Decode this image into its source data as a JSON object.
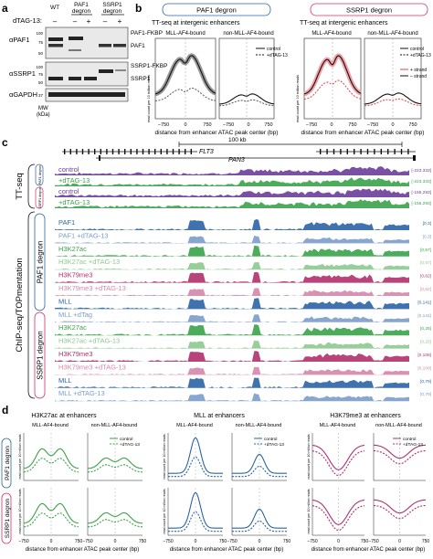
{
  "panel_labels": {
    "a": "a",
    "b": "b",
    "c": "c",
    "d": "d"
  },
  "panel_a": {
    "dtag_label": "dTAG-13:",
    "lane_headers": [
      "WT",
      "PAF1 degron",
      "SSRP1 degron"
    ],
    "treatment_signs": [
      "–",
      "–",
      "+",
      "–",
      "+"
    ],
    "antibodies": [
      "αPAF1",
      "αSSRP1",
      "αGAPDH"
    ],
    "band_labels": [
      "PAF1-FKBP",
      "PAF1",
      "SSRP1-FKBP",
      "SSRP1"
    ],
    "mw_label": "MW (kDa)",
    "mw_markers": [
      "100",
      "75",
      "50",
      "100",
      "75",
      "50",
      "37"
    ]
  },
  "panel_b": {
    "plots": [
      {
        "title": "PAF1 degron",
        "subtitle": "TT-seq at intergenic enhancers",
        "group_left": "MLL-AF4-bound",
        "group_right": "non-MLL-AF4-bound",
        "ylabel": "read count per 10 million reads",
        "xlabel": "distance from enhancer ATAC peak center (bp)",
        "xticks": [
          "−750",
          "0",
          "750",
          "−750",
          "0",
          "750"
        ],
        "legend": [
          "control",
          "+dTAG-13"
        ]
      },
      {
        "title": "SSRP1 degron",
        "subtitle": "TT-seq at intergenic enhancers",
        "group_left": "MLL-AF4-bound",
        "group_right": "non-MLL-AF4-bound",
        "ylabel": "read count per 10 million reads",
        "xlabel": "distance from enhancer ATAC peak center (bp)",
        "xticks": [
          "−750",
          "0",
          "750",
          "−750",
          "0",
          "750"
        ],
        "legend": [
          "+ strand",
          "– strand"
        ]
      }
    ]
  },
  "panel_c": {
    "scale": "100 kb",
    "genes": [
      "FLT3",
      "PAN3"
    ],
    "ttseq_label": "TT-seq",
    "chip_label": "ChIP-seq/TOPmentation",
    "groups": [
      "PAF1 degron",
      "SSRP1 degron",
      "PAF1 degron",
      "SSRP1 degron"
    ],
    "ttseq_tracks": [
      {
        "label": "control",
        "range": "[-223,333]",
        "color": "#6a3d9a"
      },
      {
        "label": "+dTAG-13",
        "range": "[-223,333]",
        "color": "#3aa34a"
      },
      {
        "label": "control",
        "range": "[-155,293]",
        "color": "#6a3d9a"
      },
      {
        "label": "+dTAG-13",
        "range": "[-155,293]",
        "color": "#3aa34a"
      }
    ],
    "chip_tracks": [
      {
        "label": "PAF1",
        "range": "[0,3]",
        "color": "#2b63a6"
      },
      {
        "label": "PAF1 +dTAG-13",
        "range": "[0,3]",
        "color": "#7b9cc9"
      },
      {
        "label": "H3K27ac",
        "range": "[0,57]",
        "color": "#3aa34a"
      },
      {
        "label": "H3K27ac +dTAG-13",
        "range": "[0,57]",
        "color": "#8cc98f"
      },
      {
        "label": "H3K79me3",
        "range": "[0,62]",
        "color": "#b0306b"
      },
      {
        "label": "H3K79me3 +dTAG-13",
        "range": "[0,62]",
        "color": "#d487ab"
      },
      {
        "label": "MLL",
        "range": "[0,141]",
        "color": "#2b63a6"
      },
      {
        "label": "MLL +dTag",
        "range": "[0,141]",
        "color": "#7b9cc9"
      },
      {
        "label": "H3K27ac",
        "range": "[0,25]",
        "color": "#3aa34a"
      },
      {
        "label": "H3K27ac +dTAG-13",
        "range": "[0,25]",
        "color": "#8cc98f"
      },
      {
        "label": "H3K79me3",
        "range": "[0,108]",
        "color": "#b0306b"
      },
      {
        "label": "H3K79me3 +dTAG-13",
        "range": "[0,108]",
        "color": "#d487ab"
      },
      {
        "label": "MLL",
        "range": "[0,79]",
        "color": "#2b63a6"
      },
      {
        "label": "MLL +dTAG-13",
        "range": "[0,79]",
        "color": "#7b9cc9"
      }
    ]
  },
  "panel_d": {
    "row_labels": [
      "PAF1 degron",
      "SSRP1 degron"
    ],
    "columns": [
      {
        "title": "H3K27ac at enhancers",
        "color": "#3aa34a"
      },
      {
        "title": "MLL at enhancers",
        "color": "#2b63a6"
      },
      {
        "title": "H3K79me3 at enhancers",
        "color": "#b0306b"
      }
    ],
    "group_left": "MLL-AF4-bound",
    "group_right": "non-MLL-AF4-bound",
    "ylabel": "read count per 10 million reads",
    "xlabel": "distance from enhancer ATAC peak center (bp)",
    "xticks": [
      "−750",
      "0",
      "750",
      "−750",
      "0",
      "750"
    ],
    "legend": [
      "control",
      "+dTAG-13"
    ]
  }
}
